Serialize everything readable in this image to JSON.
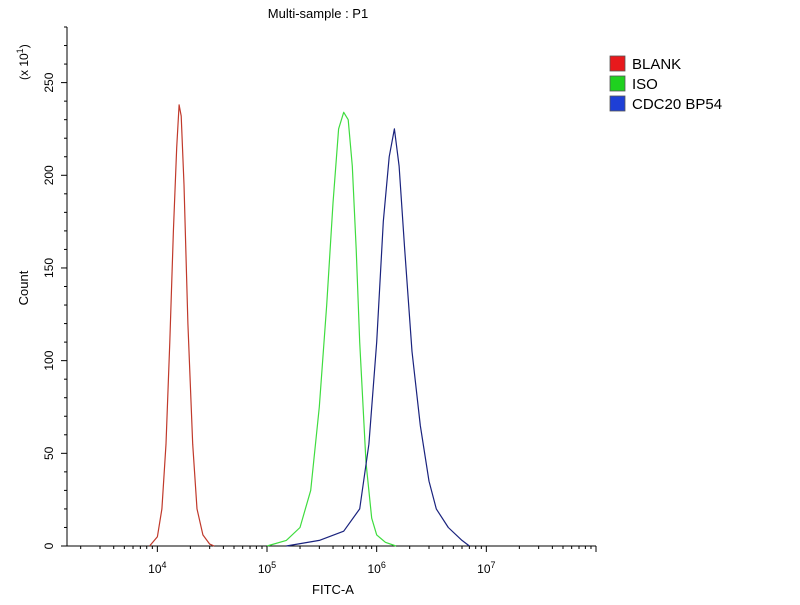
{
  "chart_data": {
    "type": "line",
    "title": "Multi-sample : P1",
    "xlabel": "FITC-A",
    "ylabel": "Count",
    "y_multiplier": "(x 10",
    "y_multiplier_exp": "1",
    "y_multiplier_close": ")",
    "x_scale": "log",
    "xlim": [
      1500,
      100000000
    ],
    "ylim": [
      0,
      280
    ],
    "grid": false,
    "legend_position": "top-right",
    "x_ticks": [
      {
        "value": 10000,
        "base": "10",
        "exp": "4"
      },
      {
        "value": 100000,
        "base": "10",
        "exp": "5"
      },
      {
        "value": 1000000,
        "base": "10",
        "exp": "6"
      },
      {
        "value": 10000000,
        "base": "10",
        "exp": "7"
      }
    ],
    "y_ticks": [
      {
        "value": 0,
        "label": "0"
      },
      {
        "value": 50,
        "label": "50"
      },
      {
        "value": 100,
        "label": "100"
      },
      {
        "value": 150,
        "label": "150"
      },
      {
        "value": 200,
        "label": "200"
      },
      {
        "value": 250,
        "label": "250"
      }
    ],
    "series": [
      {
        "name": "BLANK",
        "color": "#c0392b",
        "legend_color": "#e8191c",
        "x": [
          8500,
          10000,
          11000,
          12000,
          13000,
          14000,
          15000,
          15800,
          16500,
          17500,
          19000,
          21000,
          23000,
          26000,
          30000,
          33000
        ],
        "y": [
          0,
          5,
          20,
          55,
          110,
          170,
          215,
          238,
          232,
          195,
          120,
          55,
          20,
          6,
          1,
          0
        ]
      },
      {
        "name": "ISO",
        "color": "#3fdc3f",
        "legend_color": "#1fd11f",
        "x": [
          100000,
          150000,
          200000,
          250000,
          300000,
          350000,
          400000,
          450000,
          500000,
          550000,
          600000,
          650000,
          700000,
          800000,
          900000,
          1000000,
          1200000,
          1500000
        ],
        "y": [
          0,
          3,
          10,
          30,
          75,
          130,
          185,
          225,
          234,
          230,
          205,
          160,
          110,
          45,
          15,
          6,
          2,
          0
        ]
      },
      {
        "name": "CDC20 BP54",
        "color": "#1a237e",
        "legend_color": "#1e3fd6",
        "x": [
          150000,
          300000,
          500000,
          700000,
          850000,
          1000000,
          1150000,
          1300000,
          1450000,
          1600000,
          1800000,
          2100000,
          2500000,
          3000000,
          3500000,
          4500000,
          6000000,
          7000000
        ],
        "y": [
          0,
          3,
          8,
          20,
          55,
          110,
          175,
          210,
          225,
          205,
          160,
          105,
          65,
          35,
          20,
          10,
          3,
          0
        ]
      }
    ]
  }
}
